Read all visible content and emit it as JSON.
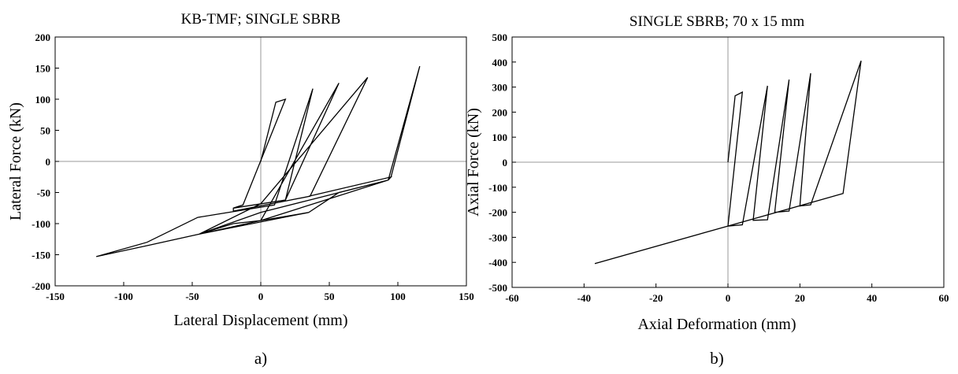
{
  "chart_data": [
    {
      "type": "line",
      "title": "KB-TMF; SINGLE SBRB",
      "xlabel": "Lateral Displacement (mm)",
      "ylabel": "Lateral Force (kN)",
      "caption": "a)",
      "xlim": [
        -150,
        150
      ],
      "ylim": [
        -200,
        200
      ],
      "xticks": [
        -150,
        -100,
        -50,
        0,
        50,
        100,
        150
      ],
      "yticks": [
        -200,
        -150,
        -100,
        -50,
        0,
        50,
        100,
        150,
        200
      ],
      "grid": false,
      "zero_lines": true,
      "series": [
        {
          "x": [
            0,
            11,
            18,
            -13,
            -20,
            18,
            38,
            10,
            -46,
            -83,
            -120,
            -82,
            -45,
            -20,
            0,
            35,
            57,
            93,
            95,
            116,
            93,
            0,
            -45,
            0,
            78,
            36,
            -20,
            -20,
            18,
            57,
            0,
            -45,
            35,
            0,
            93,
            95,
            35
          ],
          "y": [
            0,
            95,
            100,
            -70,
            -75,
            -62,
            117,
            -70,
            -90,
            -130,
            -153,
            -135,
            -117,
            -100,
            -95,
            -82,
            -50,
            -30,
            -25,
            153,
            -30,
            -82,
            -117,
            -68,
            135,
            -56,
            -80,
            -75,
            -62,
            126,
            -95,
            -117,
            -82,
            -95,
            -30,
            -25,
            -56
          ]
        }
      ]
    },
    {
      "type": "line",
      "title": "SINGLE SBRB; 70 x 15 mm",
      "xlabel": "Axial Deformation (mm)",
      "ylabel": "Axial Force (kN)",
      "caption": "b)",
      "xlim": [
        -60,
        60
      ],
      "ylim": [
        -500,
        500
      ],
      "xticks": [
        -60,
        -40,
        -20,
        0,
        20,
        40,
        60
      ],
      "yticks": [
        -500,
        -400,
        -300,
        -200,
        -100,
        0,
        100,
        200,
        300,
        400,
        500
      ],
      "grid": false,
      "zero_lines": true,
      "series": [
        {
          "x": [
            0,
            2,
            4,
            0,
            4,
            11,
            7,
            11,
            17,
            13,
            17,
            23,
            20,
            23,
            37,
            32,
            0,
            -37,
            0,
            32,
            37
          ],
          "y": [
            0,
            265,
            280,
            -255,
            -250,
            305,
            -232,
            -230,
            330,
            -200,
            -195,
            355,
            -175,
            -170,
            405,
            -125,
            -255,
            -405,
            -255,
            -125,
            405
          ]
        }
      ]
    }
  ]
}
